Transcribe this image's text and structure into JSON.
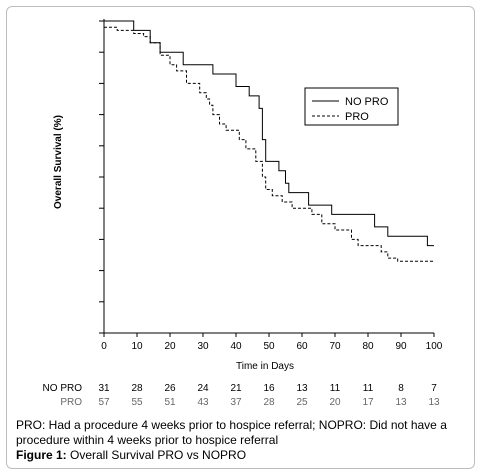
{
  "chart_data": {
    "type": "line",
    "title": "",
    "xlabel": "Time in Days",
    "ylabel": "Overall Survival (%)",
    "xlim": [
      0,
      100
    ],
    "ylim": [
      0,
      100
    ],
    "x_ticks": [
      "0",
      "10",
      "20",
      "30",
      "40",
      "50",
      "60",
      "70",
      "80",
      "90",
      "100"
    ],
    "y_tick_count": 11,
    "grid": false,
    "legend_position": "top-right",
    "series": [
      {
        "name": "NO PRO",
        "style": "solid",
        "color": "#000000",
        "steps": [
          [
            0,
            100
          ],
          [
            9,
            100
          ],
          [
            9,
            97
          ],
          [
            14,
            97
          ],
          [
            14,
            93
          ],
          [
            17,
            93
          ],
          [
            17,
            90
          ],
          [
            24,
            90
          ],
          [
            24,
            86
          ],
          [
            33,
            86
          ],
          [
            33,
            83
          ],
          [
            40,
            83
          ],
          [
            40,
            79
          ],
          [
            44,
            79
          ],
          [
            44,
            76
          ],
          [
            47,
            76
          ],
          [
            47,
            72
          ],
          [
            48,
            72
          ],
          [
            48,
            62
          ],
          [
            49,
            62
          ],
          [
            49,
            55
          ],
          [
            53,
            55
          ],
          [
            53,
            52
          ],
          [
            55,
            52
          ],
          [
            55,
            48
          ],
          [
            56,
            48
          ],
          [
            56,
            45
          ],
          [
            62,
            45
          ],
          [
            62,
            41
          ],
          [
            69,
            41
          ],
          [
            69,
            38
          ],
          [
            82,
            38
          ],
          [
            82,
            34
          ],
          [
            86,
            34
          ],
          [
            86,
            31
          ],
          [
            98,
            31
          ],
          [
            98,
            28
          ],
          [
            100,
            28
          ]
        ]
      },
      {
        "name": "PRO",
        "style": "dashed",
        "color": "#000000",
        "steps": [
          [
            0,
            98
          ],
          [
            4,
            98
          ],
          [
            4,
            97
          ],
          [
            9,
            97
          ],
          [
            9,
            96
          ],
          [
            12,
            96
          ],
          [
            12,
            95
          ],
          [
            14,
            95
          ],
          [
            14,
            93
          ],
          [
            17,
            93
          ],
          [
            17,
            89
          ],
          [
            20,
            89
          ],
          [
            20,
            86
          ],
          [
            22,
            86
          ],
          [
            22,
            84
          ],
          [
            25,
            84
          ],
          [
            25,
            80
          ],
          [
            29,
            80
          ],
          [
            29,
            77
          ],
          [
            31,
            77
          ],
          [
            31,
            75
          ],
          [
            32,
            75
          ],
          [
            32,
            73
          ],
          [
            33,
            73
          ],
          [
            33,
            70
          ],
          [
            35,
            70
          ],
          [
            35,
            67
          ],
          [
            37,
            67
          ],
          [
            37,
            65
          ],
          [
            41,
            65
          ],
          [
            41,
            62
          ],
          [
            43,
            62
          ],
          [
            43,
            59
          ],
          [
            46,
            59
          ],
          [
            46,
            55
          ],
          [
            48,
            55
          ],
          [
            48,
            50
          ],
          [
            49,
            50
          ],
          [
            49,
            46
          ],
          [
            51,
            46
          ],
          [
            51,
            44
          ],
          [
            54,
            44
          ],
          [
            54,
            42
          ],
          [
            57,
            42
          ],
          [
            57,
            40
          ],
          [
            63,
            40
          ],
          [
            63,
            38
          ],
          [
            66,
            38
          ],
          [
            66,
            35
          ],
          [
            70,
            35
          ],
          [
            70,
            33
          ],
          [
            75,
            33
          ],
          [
            75,
            30
          ],
          [
            77,
            30
          ],
          [
            77,
            28
          ],
          [
            84,
            28
          ],
          [
            84,
            26
          ],
          [
            86,
            26
          ],
          [
            86,
            24
          ],
          [
            89,
            24
          ],
          [
            89,
            23
          ],
          [
            100,
            23
          ]
        ]
      }
    ],
    "risk_table": {
      "time_points": [
        0,
        10,
        20,
        30,
        40,
        50,
        60,
        70,
        80,
        90,
        100
      ],
      "rows": [
        {
          "label": "NO PRO",
          "color": "#000000",
          "values": [
            "31",
            "28",
            "26",
            "24",
            "21",
            "16",
            "13",
            "11",
            "11",
            "8",
            "7"
          ]
        },
        {
          "label": "PRO",
          "color": "#666666",
          "values": [
            "57",
            "55",
            "51",
            "43",
            "37",
            "28",
            "25",
            "20",
            "17",
            "13",
            "13"
          ]
        }
      ]
    }
  },
  "caption": {
    "text": "PRO: Had a procedure 4 weeks prior to hospice referral; NOPRO: Did not have a procedure within 4 weeks prior to hospice referral",
    "figure_label": "Figure 1:",
    "figure_title": " Overall Survival PRO vs NOPRO"
  }
}
